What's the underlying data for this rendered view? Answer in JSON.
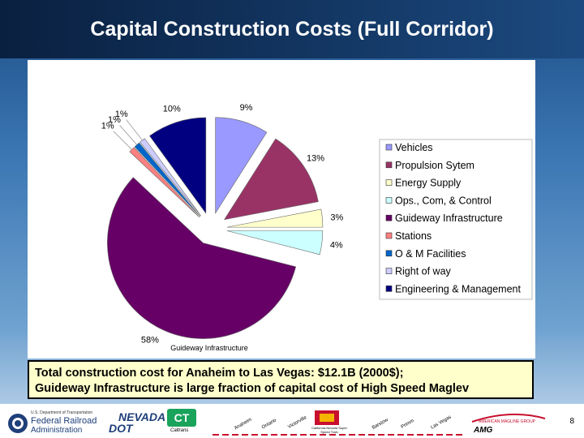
{
  "title": "Capital Construction Costs (Full Corridor)",
  "chart_data": {
    "type": "pie",
    "title": "",
    "sub_label": "Guideway Infrastructure",
    "slices": [
      {
        "name": "Vehicles",
        "value": 9,
        "label": "9%",
        "color": "#9999ff"
      },
      {
        "name": "Propulsion Sytem",
        "value": 13,
        "label": "13%",
        "color": "#993366"
      },
      {
        "name": "Energy Supply",
        "value": 3,
        "label": "3%",
        "color": "#ffffcc"
      },
      {
        "name": "Ops., Com, & Control",
        "value": 4,
        "label": "4%",
        "color": "#ccffff"
      },
      {
        "name": "Guideway Infrastructure",
        "value": 58,
        "label": "58%",
        "color": "#660066"
      },
      {
        "name": "Stations",
        "value": 1,
        "label": "1%",
        "color": "#ff8080"
      },
      {
        "name": "O & M Facilities",
        "value": 1,
        "label": "1%",
        "color": "#0066cc"
      },
      {
        "name": "Right of way",
        "value": 1,
        "label": "1%",
        "color": "#ccccff"
      },
      {
        "name": "Engineering & Management",
        "value": 10,
        "label": "10%",
        "color": "#000080"
      }
    ],
    "legend_position": "right"
  },
  "note": {
    "line1": "Total construction cost for Anaheim to Las Vegas: $12.1B (2000$);",
    "line2": "Guideway Infrastructure is large fraction of capital cost of High Speed Maglev"
  },
  "footer": {
    "fra_line1": "U.S. Department of Transportation",
    "fra_line2": "Federal Railroad",
    "fra_line3": "Administration",
    "nevada_line1": "NEVADA",
    "nevada_line2": "DOT",
    "caltrans": "Caltrans",
    "route_cities": [
      "Anaheim",
      "Ontario",
      "Victorville",
      "Barstow",
      "Primm",
      "Las Vegas"
    ],
    "route_name": "California-Nevada Super Speed Train",
    "amg_line1": "AMERICAN MAGLINE GROUP",
    "amg_line2": "AMG",
    "page_number": "8"
  }
}
